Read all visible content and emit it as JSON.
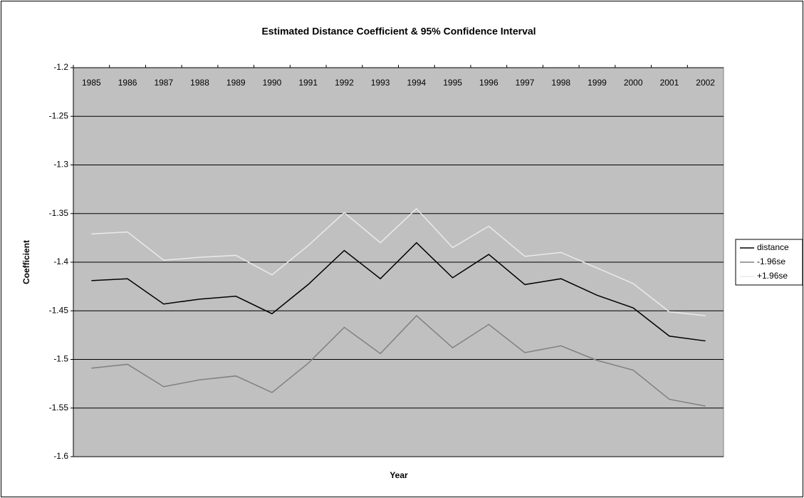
{
  "chart_data": {
    "type": "line",
    "title": "Estimated Distance Coefficient & 95% Confidence Interval",
    "x_label": "Year",
    "y_label": "Coefficient",
    "categories": [
      "1985",
      "1986",
      "1987",
      "1988",
      "1989",
      "1990",
      "1991",
      "1992",
      "1993",
      "1994",
      "1995",
      "1996",
      "1997",
      "1998",
      "1999",
      "2000",
      "2001",
      "2002"
    ],
    "series": [
      {
        "name": "distance",
        "color": "#000000",
        "values": [
          -1.419,
          -1.417,
          -1.443,
          -1.438,
          -1.435,
          -1.453,
          -1.423,
          -1.388,
          -1.417,
          -1.38,
          -1.416,
          -1.392,
          -1.423,
          -1.417,
          -1.434,
          -1.447,
          -1.476,
          -1.481
        ]
      },
      {
        "name": "-1.96se",
        "color": "#808080",
        "values": [
          -1.509,
          -1.505,
          -1.528,
          -1.521,
          -1.517,
          -1.534,
          -1.504,
          -1.467,
          -1.494,
          -1.455,
          -1.488,
          -1.464,
          -1.493,
          -1.486,
          -1.501,
          -1.511,
          -1.541,
          -1.548
        ]
      },
      {
        "name": "+1.96se",
        "color": "#eaeaea",
        "values": [
          -1.371,
          -1.369,
          -1.398,
          -1.395,
          -1.393,
          -1.413,
          -1.383,
          -1.349,
          -1.38,
          -1.345,
          -1.385,
          -1.363,
          -1.394,
          -1.39,
          -1.406,
          -1.422,
          -1.451,
          -1.455
        ]
      }
    ],
    "ylim": [
      -1.6,
      -1.2
    ],
    "yticks": [
      -1.2,
      -1.25,
      -1.3,
      -1.35,
      -1.4,
      -1.45,
      -1.5,
      -1.55,
      -1.6
    ],
    "grid": true,
    "legend": "right",
    "plot_background": "#c0c0c0"
  }
}
